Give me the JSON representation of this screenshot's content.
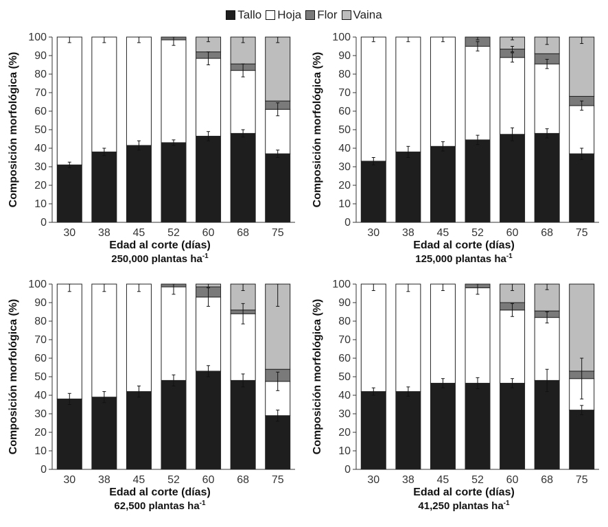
{
  "legend": {
    "items": [
      {
        "label": "Tallo",
        "color": "#1e1e1e"
      },
      {
        "label": "Hoja",
        "color": "#ffffff"
      },
      {
        "label": "Flor",
        "color": "#7a7a7a"
      },
      {
        "label": "Vaina",
        "color": "#bdbdbd"
      }
    ]
  },
  "colors": {
    "Tallo": "#1e1e1e",
    "Hoja": "#ffffff",
    "Flor": "#7a7a7a",
    "Vaina": "#bdbdbd",
    "outline": "#222222"
  },
  "chart_data": [
    {
      "type": "bar",
      "stacked": true,
      "title": "250,000 plantas ha",
      "title_sup": "-1",
      "xlabel": "Edad al corte (días)",
      "ylabel": "Composición morfológica (%)",
      "ylim": [
        0,
        100
      ],
      "yticks": [
        0,
        10,
        20,
        30,
        40,
        50,
        60,
        70,
        80,
        90,
        100
      ],
      "categories": [
        "30",
        "38",
        "45",
        "52",
        "60",
        "68",
        "75"
      ],
      "series": [
        {
          "name": "Tallo",
          "values": [
            31,
            38,
            41.5,
            43,
            46.5,
            48,
            37
          ],
          "errors": [
            1.5,
            2,
            2.5,
            1.5,
            2.5,
            2,
            2
          ]
        },
        {
          "name": "Hoja",
          "values": [
            69,
            62,
            58.5,
            55.5,
            42,
            34,
            24
          ],
          "errors": [
            3,
            3,
            3,
            3,
            3.5,
            3.5,
            3.5
          ]
        },
        {
          "name": "Flor",
          "values": [
            0,
            0,
            0,
            1.5,
            3.5,
            3.5,
            4.5
          ],
          "errors": [
            0,
            0,
            0,
            0,
            0,
            0,
            0
          ]
        },
        {
          "name": "Vaina",
          "values": [
            0,
            0,
            0,
            0,
            8,
            14.5,
            34.5
          ],
          "errors": [
            0,
            0,
            0,
            0,
            2.5,
            3,
            3
          ]
        }
      ]
    },
    {
      "type": "bar",
      "stacked": true,
      "title": "125,000 plantas ha",
      "title_sup": "-1",
      "xlabel": "Edad al corte (días)",
      "ylabel": "Composición morfológica (%)",
      "ylim": [
        0,
        100
      ],
      "yticks": [
        0,
        10,
        20,
        30,
        40,
        50,
        60,
        70,
        80,
        90,
        100
      ],
      "categories": [
        "30",
        "38",
        "45",
        "52",
        "60",
        "68",
        "75"
      ],
      "series": [
        {
          "name": "Tallo",
          "values": [
            33,
            38,
            41,
            44.5,
            47.5,
            48,
            37
          ],
          "errors": [
            2,
            3,
            2.5,
            2.5,
            3.5,
            2.5,
            3
          ]
        },
        {
          "name": "Hoja",
          "values": [
            67,
            62,
            59,
            50.5,
            41.5,
            37.5,
            26
          ],
          "errors": [
            2.5,
            2.5,
            2.5,
            2.5,
            2.5,
            2.5,
            2.5
          ]
        },
        {
          "name": "Flor",
          "values": [
            0,
            0,
            0,
            5,
            4.5,
            5.5,
            5
          ],
          "errors": [
            0,
            0,
            0,
            1.5,
            1.5,
            0,
            0
          ]
        },
        {
          "name": "Vaina",
          "values": [
            0,
            0,
            0,
            0,
            6.5,
            9,
            32
          ],
          "errors": [
            0,
            0,
            0,
            0,
            1.5,
            4,
            3.5
          ]
        }
      ]
    },
    {
      "type": "bar",
      "stacked": true,
      "title": "62,500 plantas ha",
      "title_sup": "-1",
      "xlabel": "Edad al corte (días)",
      "ylabel": "Composición morfológica (%)",
      "ylim": [
        0,
        100
      ],
      "yticks": [
        0,
        10,
        20,
        30,
        40,
        50,
        60,
        70,
        80,
        90,
        100
      ],
      "categories": [
        "30",
        "38",
        "45",
        "52",
        "60",
        "68",
        "75"
      ],
      "series": [
        {
          "name": "Tallo",
          "values": [
            38,
            39,
            42,
            48,
            53,
            48,
            29
          ],
          "errors": [
            3,
            3,
            3,
            3,
            3,
            3.5,
            3
          ]
        },
        {
          "name": "Hoja",
          "values": [
            62,
            61,
            58,
            50.5,
            40,
            36,
            18.5
          ],
          "errors": [
            4,
            4,
            4,
            4,
            5,
            5.5,
            5
          ]
        },
        {
          "name": "Flor",
          "values": [
            0,
            0,
            0,
            1.5,
            5.5,
            2,
            6.5
          ],
          "errors": [
            0,
            0,
            0,
            0,
            0,
            0,
            0
          ]
        },
        {
          "name": "Vaina",
          "values": [
            0,
            0,
            0,
            0,
            1.5,
            14,
            46
          ],
          "errors": [
            0,
            0,
            0,
            0,
            1.5,
            3.5,
            12
          ]
        }
      ]
    },
    {
      "type": "bar",
      "stacked": true,
      "title": "41,250 plantas ha",
      "title_sup": "-1",
      "xlabel": "Edad al corte (días)",
      "ylabel": "Composición morfológica (%)",
      "ylim": [
        0,
        100
      ],
      "yticks": [
        0,
        10,
        20,
        30,
        40,
        50,
        60,
        70,
        80,
        90,
        100
      ],
      "categories": [
        "30",
        "38",
        "45",
        "52",
        "60",
        "68",
        "75"
      ],
      "series": [
        {
          "name": "Tallo",
          "values": [
            42,
            42,
            46.5,
            46.5,
            46.5,
            48,
            32
          ],
          "errors": [
            2,
            2.5,
            2.5,
            3,
            2.5,
            6,
            2.5
          ]
        },
        {
          "name": "Hoja",
          "values": [
            58,
            58,
            53.5,
            51.5,
            39.5,
            34,
            17
          ],
          "errors": [
            3.5,
            4,
            3.5,
            3.5,
            3.5,
            3,
            11
          ]
        },
        {
          "name": "Flor",
          "values": [
            0,
            0,
            0,
            2,
            4,
            3.5,
            4
          ],
          "errors": [
            0,
            0,
            0,
            0,
            0,
            0,
            0
          ]
        },
        {
          "name": "Vaina",
          "values": [
            0,
            0,
            0,
            0,
            10,
            14.5,
            47
          ],
          "errors": [
            0,
            0,
            0,
            0,
            3.5,
            3,
            0
          ]
        }
      ]
    }
  ]
}
